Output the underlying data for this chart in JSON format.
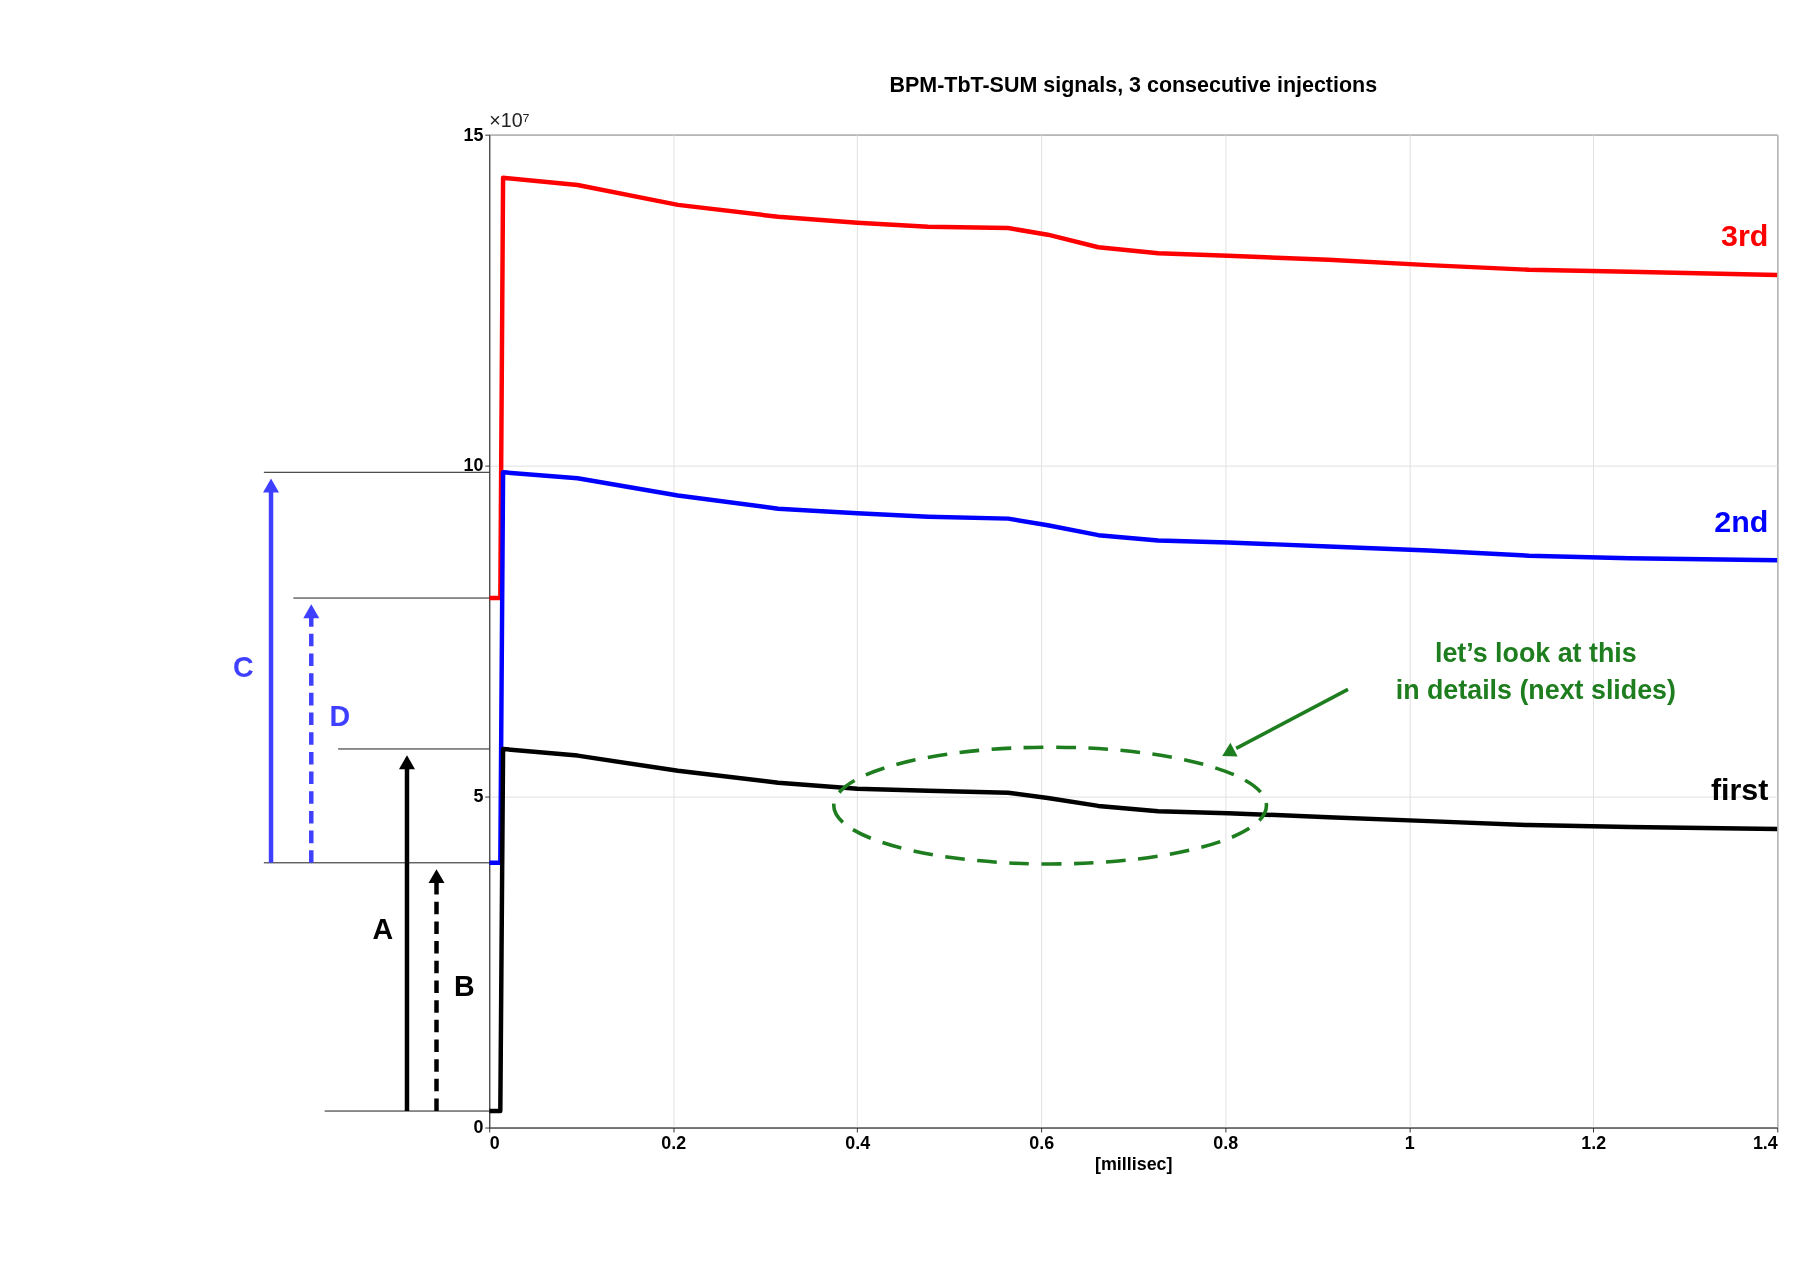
{
  "chart_data": {
    "type": "line",
    "title": "BPM-TbT-SUM signals, 3 consecutive injections",
    "xlabel": "[millisec]",
    "x": [
      0,
      0.012,
      0.015,
      0.096,
      0.205,
      0.314,
      0.4,
      0.477,
      0.564,
      0.607,
      0.662,
      0.727,
      0.803,
      0.912,
      1.021,
      1.13,
      1.239,
      1.4
    ],
    "series": [
      {
        "name": "3rd",
        "color": "#ff0000",
        "values": [
          8.0,
          8.0,
          14.35,
          14.24,
          13.94,
          13.76,
          13.67,
          13.61,
          13.59,
          13.49,
          13.3,
          13.21,
          13.17,
          13.11,
          13.03,
          12.96,
          12.93,
          12.88
        ]
      },
      {
        "name": "2nd",
        "color": "#0000ff",
        "values": [
          4.0,
          4.0,
          9.9,
          9.81,
          9.55,
          9.35,
          9.28,
          9.23,
          9.2,
          9.1,
          8.95,
          8.87,
          8.84,
          8.78,
          8.72,
          8.64,
          8.6,
          8.57
        ]
      },
      {
        "name": "first",
        "color": "#000000",
        "values": [
          0.25,
          0.25,
          5.72,
          5.62,
          5.39,
          5.21,
          5.12,
          5.09,
          5.06,
          4.98,
          4.86,
          4.78,
          4.75,
          4.69,
          4.63,
          4.57,
          4.54,
          4.51
        ]
      }
    ],
    "xlim": [
      0,
      1.4
    ],
    "xticks": [
      0,
      0.2,
      0.4,
      0.6,
      0.8,
      1,
      1.2,
      1.4
    ],
    "ylim": [
      0,
      15
    ],
    "yticks": [
      0,
      5,
      10,
      15
    ],
    "grid": true,
    "marker": "none",
    "line_style": "solid",
    "annotations": [
      "×10⁷",
      "A",
      "B",
      "C",
      "D",
      "let’s look at this\nin details (next slides)"
    ]
  }
}
